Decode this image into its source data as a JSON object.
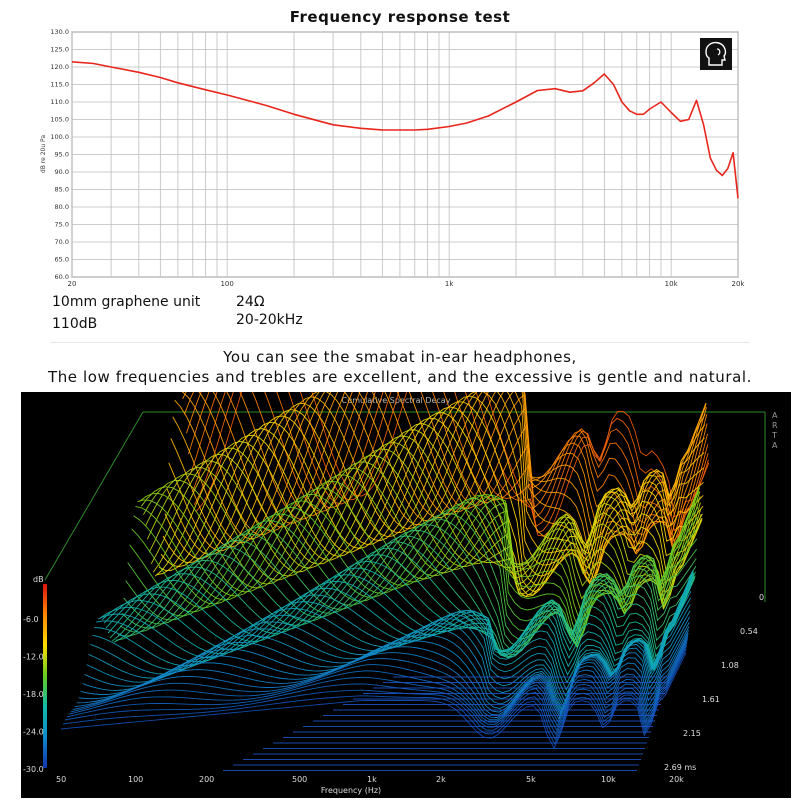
{
  "top": {
    "title": "Frequency response test",
    "specs": {
      "driver": "10mm graphene unit",
      "sensitivity": "110dB",
      "impedance": "24Ω",
      "frequency_range": "20-20kHz"
    }
  },
  "caption": {
    "line1": "You can see the smabat in-ear headphones,",
    "line2": "The low frequencies and trebles are excellent, and the excessive is gentle and natural."
  },
  "icons": {
    "fr_corner_icon": "head-ear-icon"
  },
  "chart_data": [
    {
      "type": "line",
      "title": "",
      "ylabel": "dB re 20u Pa",
      "xlabel": "",
      "xscale": "log",
      "xlim": [
        20,
        20000
      ],
      "ylim": [
        60,
        130
      ],
      "y_ticks": [
        "130.0",
        "125.0",
        "120.0",
        "115.0",
        "110.0",
        "105.0",
        "100.0",
        "95.0",
        "90.0",
        "85.0",
        "80.0",
        "75.0",
        "70.0",
        "65.0",
        "60.0"
      ],
      "x_ticks": [
        "20",
        "100",
        "1k",
        "10k",
        "20k"
      ],
      "grid": true,
      "series": [
        {
          "color": "#e8261c",
          "x": [
            20,
            25,
            30,
            40,
            50,
            60,
            80,
            100,
            150,
            200,
            300,
            400,
            500,
            600,
            700,
            800,
            1000,
            1200,
            1500,
            2000,
            2500,
            3000,
            3500,
            4000,
            4500,
            5000,
            5500,
            6000,
            6500,
            7000,
            7500,
            8000,
            9000,
            10000,
            11000,
            12000,
            13000,
            14000,
            15000,
            16000,
            17000,
            18000,
            19000,
            20000
          ],
          "y": [
            121.5,
            121,
            120,
            118.5,
            117,
            115.5,
            113.5,
            112,
            109,
            106.5,
            103.5,
            102.5,
            102,
            102,
            102,
            102.2,
            103,
            104,
            106,
            110,
            113.3,
            113.8,
            112.8,
            113.2,
            115.5,
            118,
            115,
            110,
            107.5,
            106.5,
            106.5,
            108,
            110,
            107,
            104.5,
            105,
            110.5,
            103.5,
            94,
            90.5,
            89,
            91,
            95.5,
            82.5
          ]
        }
      ]
    },
    {
      "type": "area",
      "title": "Cumulative Spectral Decay",
      "xlabel": "Frequency (Hz)",
      "ylabel": "dB",
      "zlabel": "ms",
      "watermark": "ARTA",
      "xscale": "log",
      "x_ticks": [
        "50",
        "100",
        "200",
        "500",
        "1k",
        "2k",
        "5k",
        "10k",
        "20k"
      ],
      "y_ticks": [
        "-6.0",
        "-12.0",
        "-18.0",
        "-24.0",
        "-30.0"
      ],
      "time_ticks": [
        "0",
        "0.54",
        "1.08",
        "1.61",
        "2.15",
        "2.69 ms"
      ],
      "ylim": [
        -30,
        0
      ],
      "time_range_ms": [
        0,
        2.69
      ],
      "grid": false,
      "colormap": [
        "#dd1111",
        "#ff8800",
        "#ffdd00",
        "#66cc22",
        "#11bbaa",
        "#1188cc",
        "#1133aa"
      ]
    }
  ]
}
